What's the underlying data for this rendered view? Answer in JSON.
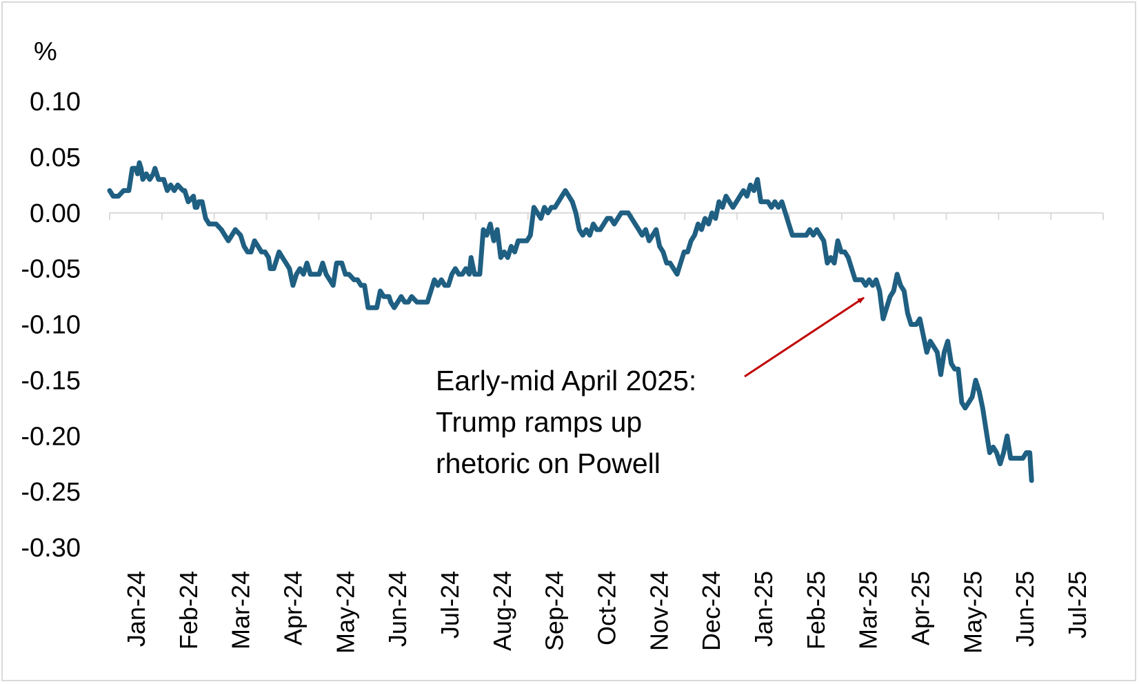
{
  "chart_data": {
    "type": "line",
    "title": "",
    "xlabel": "",
    "ylabel": "%",
    "ylim": [
      -0.3,
      0.1
    ],
    "yticks": [
      "0.10",
      "0.05",
      "0.00",
      "-0.05",
      "-0.10",
      "-0.15",
      "-0.20",
      "-0.25",
      "-0.30"
    ],
    "xticks": [
      "Jan-24",
      "Feb-24",
      "Mar-24",
      "Apr-24",
      "May-24",
      "Jun-24",
      "Jul-24",
      "Aug-24",
      "Sep-24",
      "Oct-24",
      "Nov-24",
      "Dec-24",
      "Jan-25",
      "Feb-25",
      "Mar-25",
      "Apr-25",
      "May-25",
      "Jun-25",
      "Jul-25"
    ],
    "xlim": [
      "2024-01-01",
      "2025-07-23"
    ],
    "grid": false,
    "legend": "none",
    "series": [
      {
        "color": "#1f5f82",
        "points": [
          [
            "2024-01-01",
            0.02
          ],
          [
            "2024-01-03",
            0.015
          ],
          [
            "2024-01-06",
            0.015
          ],
          [
            "2024-01-09",
            0.02
          ],
          [
            "2024-01-12",
            0.02
          ],
          [
            "2024-01-14",
            0.04
          ],
          [
            "2024-01-16",
            0.04
          ],
          [
            "2024-01-17",
            0.035
          ],
          [
            "2024-01-18",
            0.045
          ],
          [
            "2024-01-19",
            0.04
          ],
          [
            "2024-01-20",
            0.03
          ],
          [
            "2024-01-22",
            0.035
          ],
          [
            "2024-01-24",
            0.03
          ],
          [
            "2024-01-26",
            0.035
          ],
          [
            "2024-01-27",
            0.04
          ],
          [
            "2024-01-29",
            0.03
          ],
          [
            "2024-02-01",
            0.03
          ],
          [
            "2024-02-03",
            0.02
          ],
          [
            "2024-02-05",
            0.025
          ],
          [
            "2024-02-07",
            0.02
          ],
          [
            "2024-02-09",
            0.025
          ],
          [
            "2024-02-12",
            0.02
          ],
          [
            "2024-02-13",
            0.02
          ],
          [
            "2024-02-15",
            0.01
          ],
          [
            "2024-02-18",
            0.015
          ],
          [
            "2024-02-19",
            0.005
          ],
          [
            "2024-02-20",
            0.005
          ],
          [
            "2024-02-21",
            0.01
          ],
          [
            "2024-02-23",
            0.01
          ],
          [
            "2024-02-25",
            -0.005
          ],
          [
            "2024-02-27",
            -0.01
          ],
          [
            "2024-02-29",
            -0.01
          ],
          [
            "2024-03-02",
            -0.01
          ],
          [
            "2024-03-05",
            -0.015
          ],
          [
            "2024-03-07",
            -0.02
          ],
          [
            "2024-03-09",
            -0.025
          ],
          [
            "2024-03-11",
            -0.02
          ],
          [
            "2024-03-13",
            -0.015
          ],
          [
            "2024-03-16",
            -0.02
          ],
          [
            "2024-03-18",
            -0.03
          ],
          [
            "2024-03-20",
            -0.035
          ],
          [
            "2024-03-22",
            -0.035
          ],
          [
            "2024-03-24",
            -0.025
          ],
          [
            "2024-03-26",
            -0.03
          ],
          [
            "2024-03-28",
            -0.035
          ],
          [
            "2024-03-30",
            -0.035
          ],
          [
            "2024-04-01",
            -0.04
          ],
          [
            "2024-04-02",
            -0.05
          ],
          [
            "2024-04-04",
            -0.05
          ],
          [
            "2024-04-07",
            -0.035
          ],
          [
            "2024-04-09",
            -0.04
          ],
          [
            "2024-04-11",
            -0.045
          ],
          [
            "2024-04-13",
            -0.05
          ],
          [
            "2024-04-15",
            -0.065
          ],
          [
            "2024-04-17",
            -0.055
          ],
          [
            "2024-04-19",
            -0.05
          ],
          [
            "2024-04-21",
            -0.055
          ],
          [
            "2024-04-23",
            -0.045
          ],
          [
            "2024-04-25",
            -0.055
          ],
          [
            "2024-04-28",
            -0.055
          ],
          [
            "2024-04-30",
            -0.055
          ],
          [
            "2024-05-02",
            -0.045
          ],
          [
            "2024-05-04",
            -0.055
          ],
          [
            "2024-05-06",
            -0.06
          ],
          [
            "2024-05-08",
            -0.065
          ],
          [
            "2024-05-10",
            -0.045
          ],
          [
            "2024-05-13",
            -0.045
          ],
          [
            "2024-05-15",
            -0.055
          ],
          [
            "2024-05-17",
            -0.055
          ],
          [
            "2024-05-20",
            -0.06
          ],
          [
            "2024-05-22",
            -0.06
          ],
          [
            "2024-05-24",
            -0.065
          ],
          [
            "2024-05-26",
            -0.065
          ],
          [
            "2024-05-28",
            -0.085
          ],
          [
            "2024-05-31",
            -0.085
          ],
          [
            "2024-06-02",
            -0.085
          ],
          [
            "2024-06-04",
            -0.07
          ],
          [
            "2024-06-06",
            -0.075
          ],
          [
            "2024-06-09",
            -0.075
          ],
          [
            "2024-06-10",
            -0.08
          ],
          [
            "2024-06-12",
            -0.085
          ],
          [
            "2024-06-14",
            -0.08
          ],
          [
            "2024-06-16",
            -0.075
          ],
          [
            "2024-06-18",
            -0.08
          ],
          [
            "2024-06-20",
            -0.08
          ],
          [
            "2024-06-22",
            -0.075
          ],
          [
            "2024-06-25",
            -0.08
          ],
          [
            "2024-06-27",
            -0.08
          ],
          [
            "2024-07-01",
            -0.08
          ],
          [
            "2024-07-03",
            -0.07
          ],
          [
            "2024-07-05",
            -0.06
          ],
          [
            "2024-07-07",
            -0.065
          ],
          [
            "2024-07-09",
            -0.06
          ],
          [
            "2024-07-11",
            -0.065
          ],
          [
            "2024-07-13",
            -0.065
          ],
          [
            "2024-07-15",
            -0.055
          ],
          [
            "2024-07-17",
            -0.05
          ],
          [
            "2024-07-19",
            -0.055
          ],
          [
            "2024-07-21",
            -0.055
          ],
          [
            "2024-07-23",
            -0.05
          ],
          [
            "2024-07-25",
            -0.055
          ],
          [
            "2024-07-26",
            -0.04
          ],
          [
            "2024-07-28",
            -0.055
          ],
          [
            "2024-07-31",
            -0.055
          ],
          [
            "2024-08-02",
            -0.015
          ],
          [
            "2024-08-04",
            -0.02
          ],
          [
            "2024-08-06",
            -0.01
          ],
          [
            "2024-08-08",
            -0.025
          ],
          [
            "2024-08-10",
            -0.015
          ],
          [
            "2024-08-12",
            -0.04
          ],
          [
            "2024-08-14",
            -0.035
          ],
          [
            "2024-08-16",
            -0.04
          ],
          [
            "2024-08-18",
            -0.03
          ],
          [
            "2024-08-20",
            -0.035
          ],
          [
            "2024-08-22",
            -0.025
          ],
          [
            "2024-08-24",
            -0.025
          ],
          [
            "2024-08-27",
            -0.025
          ],
          [
            "2024-08-29",
            -0.02
          ],
          [
            "2024-08-31",
            0.005
          ],
          [
            "2024-09-02",
            0.0
          ],
          [
            "2024-09-04",
            -0.005
          ],
          [
            "2024-09-06",
            0.005
          ],
          [
            "2024-09-08",
            0.0
          ],
          [
            "2024-09-10",
            0.005
          ],
          [
            "2024-09-12",
            0.005
          ],
          [
            "2024-09-14",
            0.01
          ],
          [
            "2024-09-16",
            0.015
          ],
          [
            "2024-09-18",
            0.02
          ],
          [
            "2024-09-20",
            0.015
          ],
          [
            "2024-09-22",
            0.01
          ],
          [
            "2024-09-24",
            0.0
          ],
          [
            "2024-09-26",
            -0.015
          ],
          [
            "2024-09-28",
            -0.02
          ],
          [
            "2024-09-30",
            -0.015
          ],
          [
            "2024-10-02",
            -0.02
          ],
          [
            "2024-10-04",
            -0.01
          ],
          [
            "2024-10-06",
            -0.015
          ],
          [
            "2024-10-08",
            -0.015
          ],
          [
            "2024-10-10",
            -0.01
          ],
          [
            "2024-10-12",
            -0.005
          ],
          [
            "2024-10-14",
            -0.005
          ],
          [
            "2024-10-16",
            -0.01
          ],
          [
            "2024-10-18",
            -0.005
          ],
          [
            "2024-10-20",
            0.0
          ],
          [
            "2024-10-22",
            0.0
          ],
          [
            "2024-10-24",
            0.0
          ],
          [
            "2024-10-26",
            -0.005
          ],
          [
            "2024-10-28",
            -0.01
          ],
          [
            "2024-10-30",
            -0.015
          ],
          [
            "2024-11-01",
            -0.02
          ],
          [
            "2024-11-03",
            -0.015
          ],
          [
            "2024-11-05",
            -0.025
          ],
          [
            "2024-11-07",
            -0.02
          ],
          [
            "2024-11-09",
            -0.015
          ],
          [
            "2024-11-11",
            -0.03
          ],
          [
            "2024-11-13",
            -0.035
          ],
          [
            "2024-11-15",
            -0.045
          ],
          [
            "2024-11-17",
            -0.045
          ],
          [
            "2024-11-19",
            -0.05
          ],
          [
            "2024-11-21",
            -0.055
          ],
          [
            "2024-11-23",
            -0.045
          ],
          [
            "2024-11-25",
            -0.035
          ],
          [
            "2024-11-27",
            -0.035
          ],
          [
            "2024-11-29",
            -0.025
          ],
          [
            "2024-12-01",
            -0.02
          ],
          [
            "2024-12-03",
            -0.01
          ],
          [
            "2024-12-05",
            -0.015
          ],
          [
            "2024-12-07",
            -0.005
          ],
          [
            "2024-12-09",
            -0.01
          ],
          [
            "2024-12-11",
            0.0
          ],
          [
            "2024-12-13",
            -0.005
          ],
          [
            "2024-12-15",
            0.01
          ],
          [
            "2024-12-17",
            0.005
          ],
          [
            "2024-12-19",
            0.015
          ],
          [
            "2024-12-21",
            0.01
          ],
          [
            "2024-12-23",
            0.005
          ],
          [
            "2024-12-25",
            0.01
          ],
          [
            "2024-12-27",
            0.015
          ],
          [
            "2024-12-29",
            0.02
          ],
          [
            "2024-12-31",
            0.015
          ],
          [
            "2025-01-02",
            0.025
          ],
          [
            "2025-01-04",
            0.02
          ],
          [
            "2025-01-06",
            0.03
          ],
          [
            "2025-01-08",
            0.01
          ],
          [
            "2025-01-10",
            0.01
          ],
          [
            "2025-01-12",
            0.01
          ],
          [
            "2025-01-14",
            0.005
          ],
          [
            "2025-01-16",
            0.01
          ],
          [
            "2025-01-18",
            0.005
          ],
          [
            "2025-01-20",
            0.01
          ],
          [
            "2025-01-22",
            0.0
          ],
          [
            "2025-01-24",
            -0.01
          ],
          [
            "2025-01-26",
            -0.02
          ],
          [
            "2025-01-28",
            -0.02
          ],
          [
            "2025-01-30",
            -0.02
          ],
          [
            "2025-02-01",
            -0.02
          ],
          [
            "2025-02-03",
            -0.02
          ],
          [
            "2025-02-05",
            -0.015
          ],
          [
            "2025-02-07",
            -0.02
          ],
          [
            "2025-02-09",
            -0.015
          ],
          [
            "2025-02-11",
            -0.02
          ],
          [
            "2025-02-13",
            -0.025
          ],
          [
            "2025-02-15",
            -0.045
          ],
          [
            "2025-02-17",
            -0.04
          ],
          [
            "2025-02-19",
            -0.045
          ],
          [
            "2025-02-21",
            -0.025
          ],
          [
            "2025-02-23",
            -0.035
          ],
          [
            "2025-02-25",
            -0.035
          ],
          [
            "2025-02-27",
            -0.04
          ],
          [
            "2025-03-01",
            -0.05
          ],
          [
            "2025-03-03",
            -0.06
          ],
          [
            "2025-03-05",
            -0.06
          ],
          [
            "2025-03-07",
            -0.06
          ],
          [
            "2025-03-09",
            -0.065
          ],
          [
            "2025-03-11",
            -0.06
          ],
          [
            "2025-03-13",
            -0.065
          ],
          [
            "2025-03-15",
            -0.06
          ],
          [
            "2025-03-17",
            -0.07
          ],
          [
            "2025-03-19",
            -0.095
          ],
          [
            "2025-03-21",
            -0.085
          ],
          [
            "2025-03-23",
            -0.075
          ],
          [
            "2025-03-25",
            -0.07
          ],
          [
            "2025-03-27",
            -0.055
          ],
          [
            "2025-03-29",
            -0.065
          ],
          [
            "2025-03-31",
            -0.07
          ],
          [
            "2025-04-02",
            -0.09
          ],
          [
            "2025-04-04",
            -0.1
          ],
          [
            "2025-04-07",
            -0.1
          ],
          [
            "2025-04-09",
            -0.095
          ],
          [
            "2025-04-11",
            -0.11
          ],
          [
            "2025-04-13",
            -0.125
          ],
          [
            "2025-04-15",
            -0.115
          ],
          [
            "2025-04-17",
            -0.12
          ],
          [
            "2025-04-19",
            -0.125
          ],
          [
            "2025-04-21",
            -0.145
          ],
          [
            "2025-04-23",
            -0.125
          ],
          [
            "2025-04-25",
            -0.115
          ],
          [
            "2025-04-27",
            -0.135
          ],
          [
            "2025-04-29",
            -0.14
          ],
          [
            "2025-05-01",
            -0.14
          ],
          [
            "2025-05-03",
            -0.17
          ],
          [
            "2025-05-05",
            -0.175
          ],
          [
            "2025-05-07",
            -0.17
          ],
          [
            "2025-05-09",
            -0.165
          ],
          [
            "2025-05-11",
            -0.15
          ],
          [
            "2025-05-13",
            -0.16
          ],
          [
            "2025-05-15",
            -0.175
          ],
          [
            "2025-05-17",
            -0.195
          ],
          [
            "2025-05-19",
            -0.215
          ],
          [
            "2025-05-21",
            -0.21
          ],
          [
            "2025-05-23",
            -0.215
          ],
          [
            "2025-05-25",
            -0.225
          ],
          [
            "2025-05-27",
            -0.215
          ],
          [
            "2025-05-29",
            -0.2
          ],
          [
            "2025-05-31",
            -0.22
          ],
          [
            "2025-06-03",
            -0.22
          ],
          [
            "2025-06-07",
            -0.22
          ],
          [
            "2025-06-09",
            -0.215
          ],
          [
            "2025-06-11",
            -0.215
          ],
          [
            "2025-06-12",
            -0.24
          ]
        ]
      }
    ],
    "annotation": {
      "lines": [
        "Early-mid April 2025:",
        "Trump ramps up",
        "rhetoric on Powell"
      ],
      "arrow_color": "#c00000",
      "arrow_target_date": "2025-03-08",
      "arrow_target_value": -0.06
    }
  }
}
